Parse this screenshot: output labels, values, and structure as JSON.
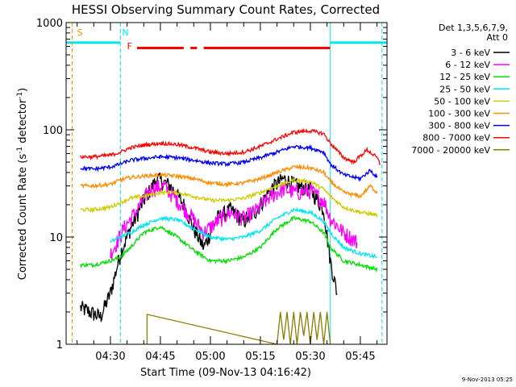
{
  "chart_data": {
    "type": "line",
    "title": "HESSI Observing Summary Count Rates, Corrected",
    "xlabel": "Start Time (09-Nov-13 04:16:42)",
    "ylabel_parts": [
      "Corrected Count Rate (s",
      "-1",
      " detector",
      "-1",
      ")"
    ],
    "yscale": "log",
    "ylim": [
      1,
      1000
    ],
    "xlim": [
      "04:16:42",
      "05:53:00"
    ],
    "x_ticks": [
      "04:30",
      "04:45",
      "05:00",
      "05:15",
      "05:30",
      "05:45"
    ],
    "y_ticks": [
      "1",
      "10",
      "100",
      "1000"
    ],
    "legend_title": [
      "Det 1,3,5,6,7,9,",
      "Att 0"
    ],
    "legend_position": "right",
    "footer_date": "9-Nov-2013 05:25",
    "markers": [
      {
        "label": "S",
        "color": "#e69500",
        "x": "04:18:30"
      },
      {
        "label": "N",
        "color": "#00e5ee",
        "x": "04:33:00"
      },
      {
        "label": "F",
        "color": "#ff0000",
        "x": "04:34:30"
      }
    ],
    "night_intervals": [
      [
        "04:16:42",
        "04:33:00"
      ],
      [
        "05:36:00",
        "05:53:00"
      ]
    ],
    "night_level": 650,
    "flag_segments": [
      {
        "color": "#ff0000",
        "level": 580,
        "start": "04:38:00",
        "end": "04:52:00"
      },
      {
        "color": "#ff0000",
        "level": 580,
        "start": "04:54:00",
        "end": "04:56:00"
      },
      {
        "color": "#ff0000",
        "level": 580,
        "start": "04:58:00",
        "end": "05:36:00"
      }
    ],
    "vertical_lines": [
      {
        "color": "#e69500",
        "x": "04:18:30",
        "style": "dashed"
      },
      {
        "color": "#00e5ee",
        "x": "04:33:00",
        "style": "dashed"
      },
      {
        "color": "#00e5ee",
        "x": "05:36:00",
        "style": "solid"
      },
      {
        "color": "#00e5ee",
        "x": "05:51:30",
        "style": "dashed"
      }
    ],
    "series": [
      {
        "name": "3 - 6 keV",
        "color": "#000000",
        "x": [
          "04:21",
          "04:27",
          "04:30",
          "04:33",
          "04:36",
          "04:40",
          "04:44",
          "04:48",
          "04:52",
          "04:55",
          "04:58",
          "05:02",
          "05:06",
          "05:10",
          "05:14",
          "05:18",
          "05:22",
          "05:26",
          "05:30",
          "05:34",
          "05:36",
          "05:38"
        ],
        "y": [
          2.2,
          1.8,
          3.0,
          7,
          12,
          22,
          35,
          30,
          20,
          12,
          8,
          15,
          18,
          14,
          18,
          28,
          35,
          30,
          28,
          18,
          6,
          3
        ]
      },
      {
        "name": "6 - 12 keV",
        "color": "#ff00ff",
        "x": [
          "04:30",
          "04:32",
          "04:34",
          "04:38",
          "04:42",
          "04:46",
          "04:50",
          "04:54",
          "04:58",
          "05:02",
          "05:06",
          "05:10",
          "05:14",
          "05:18",
          "05:22",
          "05:26",
          "05:30",
          "05:34",
          "05:36",
          "05:40",
          "05:44"
        ],
        "y": [
          7,
          9,
          12,
          18,
          28,
          30,
          22,
          16,
          11,
          14,
          17,
          15,
          18,
          24,
          28,
          26,
          27,
          22,
          15,
          11,
          9
        ]
      },
      {
        "name": "12 - 25 keV",
        "color": "#00dd00",
        "x": [
          "04:21",
          "04:25",
          "04:30",
          "04:33",
          "04:36",
          "04:40",
          "04:45",
          "04:50",
          "04:55",
          "05:00",
          "05:05",
          "05:10",
          "05:15",
          "05:20",
          "05:25",
          "05:30",
          "05:34",
          "05:36",
          "05:40",
          "05:45",
          "05:50"
        ],
        "y": [
          5.5,
          5.5,
          6,
          6.5,
          8,
          11,
          12.5,
          10,
          7.5,
          6,
          6,
          6.5,
          8,
          12,
          15,
          14,
          11,
          8,
          6,
          5.5,
          5
        ]
      },
      {
        "name": "25 - 50 keV",
        "color": "#00e5ee",
        "x": [
          "04:30",
          "04:33",
          "04:36",
          "04:40",
          "04:45",
          "04:50",
          "04:55",
          "05:00",
          "05:05",
          "05:10",
          "05:15",
          "05:20",
          "05:25",
          "05:30",
          "05:34",
          "05:36",
          "05:40",
          "05:45",
          "05:50"
        ],
        "y": [
          9,
          10,
          11,
          13,
          15,
          14.5,
          12,
          10,
          9.5,
          10,
          11.5,
          15,
          18,
          17,
          14,
          11,
          8,
          7,
          6.5
        ]
      },
      {
        "name": "50 - 100 keV",
        "color": "#cccc00",
        "x": [
          "04:21",
          "04:25",
          "04:30",
          "04:33",
          "04:36",
          "04:40",
          "04:45",
          "04:50",
          "04:55",
          "05:00",
          "05:05",
          "05:10",
          "05:15",
          "05:20",
          "05:25",
          "05:30",
          "05:34",
          "05:36",
          "05:40",
          "05:45",
          "05:50"
        ],
        "y": [
          18,
          18,
          19,
          21,
          23,
          24,
          26,
          26,
          24,
          22,
          22,
          23,
          26,
          30,
          34,
          33,
          28,
          24,
          19,
          17,
          16
        ]
      },
      {
        "name": "100 - 300 keV",
        "color": "#ff8c00",
        "x": [
          "04:21",
          "04:25",
          "04:30",
          "04:33",
          "04:36",
          "04:40",
          "04:45",
          "04:50",
          "04:55",
          "05:00",
          "05:05",
          "05:10",
          "05:15",
          "05:20",
          "05:25",
          "05:30",
          "05:34",
          "05:36",
          "05:40",
          "05:45",
          "05:48",
          "05:50"
        ],
        "y": [
          30,
          30,
          31,
          34,
          36,
          37,
          38,
          37,
          35,
          32,
          31,
          32,
          35,
          40,
          45,
          44,
          40,
          33,
          26,
          24,
          30,
          26
        ]
      },
      {
        "name": "300 - 800 keV",
        "color": "#0000ff",
        "x": [
          "04:21",
          "04:25",
          "04:30",
          "04:33",
          "04:36",
          "04:40",
          "04:45",
          "04:50",
          "04:55",
          "05:00",
          "05:05",
          "05:10",
          "05:15",
          "05:20",
          "05:25",
          "05:30",
          "05:34",
          "05:36",
          "05:40",
          "05:45",
          "05:48",
          "05:50"
        ],
        "y": [
          44,
          43,
          45,
          48,
          52,
          54,
          56,
          55,
          52,
          49,
          48,
          50,
          55,
          62,
          70,
          68,
          62,
          48,
          38,
          35,
          42,
          36
        ]
      },
      {
        "name": "800 - 7000 keV",
        "color": "#ff0000",
        "x": [
          "04:21",
          "04:25",
          "04:30",
          "04:33",
          "04:36",
          "04:40",
          "04:45",
          "04:50",
          "04:55",
          "05:00",
          "05:05",
          "05:10",
          "05:15",
          "05:20",
          "05:25",
          "05:30",
          "05:34",
          "05:36",
          "05:40",
          "05:43",
          "05:47",
          "05:50",
          "05:51"
        ],
        "y": [
          56,
          56,
          58,
          62,
          68,
          72,
          75,
          73,
          68,
          62,
          60,
          62,
          70,
          82,
          95,
          98,
          92,
          75,
          55,
          50,
          65,
          55,
          47
        ]
      },
      {
        "name": "7000 - 20000 keV",
        "color": "#8b7d00",
        "x": [
          "04:41",
          "04:41",
          "05:20",
          "05:21",
          "05:22",
          "05:23",
          "05:24",
          "05:25",
          "05:26",
          "05:27",
          "05:28",
          "05:29",
          "05:30",
          "05:31",
          "05:32",
          "05:33",
          "05:34",
          "05:35",
          "05:36"
        ],
        "y": [
          1,
          1.9,
          1,
          2,
          1.1,
          2,
          1,
          2,
          1,
          2,
          1.2,
          2,
          1,
          2,
          1.1,
          2,
          1,
          2,
          1
        ]
      }
    ]
  }
}
